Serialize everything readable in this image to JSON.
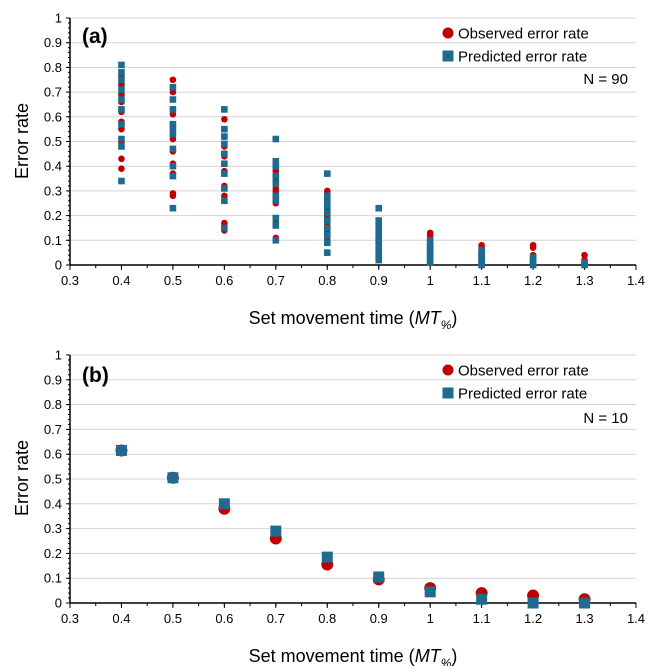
{
  "colors": {
    "observed": "#c00000",
    "predicted": "#1f6b8f"
  },
  "chart_data": [
    {
      "type": "scatter",
      "panel_label": "(a)",
      "xlabel_main": "Set movement time (",
      "xlabel_italic": "MT",
      "xlabel_sub": "%",
      "xlabel_close": ")",
      "ylabel": "Error rate",
      "xlim": [
        0.3,
        1.4
      ],
      "ylim": [
        0,
        1
      ],
      "xticks": [
        "0.3",
        "0.4",
        "0.5",
        "0.6",
        "0.7",
        "0.8",
        "0.9",
        "1",
        "1.1",
        "1.2",
        "1.3",
        "1.4"
      ],
      "yticks": [
        "0",
        "0.1",
        "0.2",
        "0.3",
        "0.4",
        "0.5",
        "0.6",
        "0.7",
        "0.8",
        "0.9",
        "1"
      ],
      "grid": true,
      "legend_position": "top-right",
      "annotation": "N = 90",
      "series": [
        {
          "name": "Observed error rate",
          "marker": "circle",
          "points": [
            [
              0.4,
              0.39
            ],
            [
              0.4,
              0.43
            ],
            [
              0.4,
              0.5
            ],
            [
              0.4,
              0.55
            ],
            [
              0.4,
              0.58
            ],
            [
              0.4,
              0.62
            ],
            [
              0.4,
              0.66
            ],
            [
              0.4,
              0.69
            ],
            [
              0.4,
              0.73
            ],
            [
              0.4,
              0.77
            ],
            [
              0.5,
              0.28
            ],
            [
              0.5,
              0.29
            ],
            [
              0.5,
              0.37
            ],
            [
              0.5,
              0.41
            ],
            [
              0.5,
              0.46
            ],
            [
              0.5,
              0.51
            ],
            [
              0.5,
              0.57
            ],
            [
              0.5,
              0.61
            ],
            [
              0.5,
              0.7
            ],
            [
              0.5,
              0.75
            ],
            [
              0.6,
              0.14
            ],
            [
              0.6,
              0.17
            ],
            [
              0.6,
              0.28
            ],
            [
              0.6,
              0.32
            ],
            [
              0.6,
              0.38
            ],
            [
              0.6,
              0.44
            ],
            [
              0.6,
              0.48
            ],
            [
              0.6,
              0.52
            ],
            [
              0.6,
              0.55
            ],
            [
              0.6,
              0.59
            ],
            [
              0.7,
              0.11
            ],
            [
              0.7,
              0.17
            ],
            [
              0.7,
              0.25
            ],
            [
              0.7,
              0.29
            ],
            [
              0.7,
              0.3
            ],
            [
              0.7,
              0.31
            ],
            [
              0.7,
              0.34
            ],
            [
              0.7,
              0.36
            ],
            [
              0.7,
              0.38
            ],
            [
              0.7,
              0.4
            ],
            [
              0.8,
              0.05
            ],
            [
              0.8,
              0.1
            ],
            [
              0.8,
              0.13
            ],
            [
              0.8,
              0.16
            ],
            [
              0.8,
              0.2
            ],
            [
              0.8,
              0.22
            ],
            [
              0.8,
              0.25
            ],
            [
              0.8,
              0.27
            ],
            [
              0.8,
              0.29
            ],
            [
              0.8,
              0.3
            ],
            [
              0.9,
              0.03
            ],
            [
              0.9,
              0.05
            ],
            [
              0.9,
              0.07
            ],
            [
              0.9,
              0.09
            ],
            [
              0.9,
              0.1
            ],
            [
              0.9,
              0.12
            ],
            [
              0.9,
              0.13
            ],
            [
              0.9,
              0.14
            ],
            [
              0.9,
              0.16
            ],
            [
              0.9,
              0.17
            ],
            [
              1.0,
              0.01
            ],
            [
              1.0,
              0.02
            ],
            [
              1.0,
              0.03
            ],
            [
              1.0,
              0.04
            ],
            [
              1.0,
              0.05
            ],
            [
              1.0,
              0.06
            ],
            [
              1.0,
              0.08
            ],
            [
              1.0,
              0.1
            ],
            [
              1.0,
              0.12
            ],
            [
              1.0,
              0.13
            ],
            [
              1.1,
              0.0
            ],
            [
              1.1,
              0.01
            ],
            [
              1.1,
              0.02
            ],
            [
              1.1,
              0.03
            ],
            [
              1.1,
              0.04
            ],
            [
              1.1,
              0.05
            ],
            [
              1.1,
              0.07
            ],
            [
              1.1,
              0.08
            ],
            [
              1.2,
              0.0
            ],
            [
              1.2,
              0.01
            ],
            [
              1.2,
              0.02
            ],
            [
              1.2,
              0.04
            ],
            [
              1.2,
              0.07
            ],
            [
              1.2,
              0.08
            ],
            [
              1.3,
              0.0
            ],
            [
              1.3,
              0.01
            ],
            [
              1.3,
              0.02
            ],
            [
              1.3,
              0.04
            ]
          ]
        },
        {
          "name": "Predicted error rate",
          "marker": "square",
          "points": [
            [
              0.4,
              0.34
            ],
            [
              0.4,
              0.48
            ],
            [
              0.4,
              0.51
            ],
            [
              0.4,
              0.57
            ],
            [
              0.4,
              0.63
            ],
            [
              0.4,
              0.67
            ],
            [
              0.4,
              0.71
            ],
            [
              0.4,
              0.75
            ],
            [
              0.4,
              0.78
            ],
            [
              0.4,
              0.81
            ],
            [
              0.5,
              0.23
            ],
            [
              0.5,
              0.36
            ],
            [
              0.5,
              0.4
            ],
            [
              0.5,
              0.47
            ],
            [
              0.5,
              0.53
            ],
            [
              0.5,
              0.55
            ],
            [
              0.5,
              0.57
            ],
            [
              0.5,
              0.63
            ],
            [
              0.5,
              0.67
            ],
            [
              0.5,
              0.72
            ],
            [
              0.6,
              0.15
            ],
            [
              0.6,
              0.26
            ],
            [
              0.6,
              0.31
            ],
            [
              0.6,
              0.37
            ],
            [
              0.6,
              0.41
            ],
            [
              0.6,
              0.45
            ],
            [
              0.6,
              0.49
            ],
            [
              0.6,
              0.52
            ],
            [
              0.6,
              0.55
            ],
            [
              0.6,
              0.63
            ],
            [
              0.7,
              0.1
            ],
            [
              0.7,
              0.16
            ],
            [
              0.7,
              0.19
            ],
            [
              0.7,
              0.26
            ],
            [
              0.7,
              0.28
            ],
            [
              0.7,
              0.33
            ],
            [
              0.7,
              0.36
            ],
            [
              0.7,
              0.4
            ],
            [
              0.7,
              0.42
            ],
            [
              0.7,
              0.51
            ],
            [
              0.8,
              0.05
            ],
            [
              0.8,
              0.09
            ],
            [
              0.8,
              0.12
            ],
            [
              0.8,
              0.15
            ],
            [
              0.8,
              0.18
            ],
            [
              0.8,
              0.21
            ],
            [
              0.8,
              0.24
            ],
            [
              0.8,
              0.26
            ],
            [
              0.8,
              0.28
            ],
            [
              0.8,
              0.37
            ],
            [
              0.9,
              0.02
            ],
            [
              0.9,
              0.04
            ],
            [
              0.9,
              0.06
            ],
            [
              0.9,
              0.08
            ],
            [
              0.9,
              0.1
            ],
            [
              0.9,
              0.12
            ],
            [
              0.9,
              0.14
            ],
            [
              0.9,
              0.16
            ],
            [
              0.9,
              0.18
            ],
            [
              0.9,
              0.23
            ],
            [
              1.0,
              0.01
            ],
            [
              1.0,
              0.02
            ],
            [
              1.0,
              0.03
            ],
            [
              1.0,
              0.04
            ],
            [
              1.0,
              0.05
            ],
            [
              1.0,
              0.06
            ],
            [
              1.0,
              0.07
            ],
            [
              1.0,
              0.08
            ],
            [
              1.0,
              0.09
            ],
            [
              1.0,
              0.1
            ],
            [
              1.1,
              0.0
            ],
            [
              1.1,
              0.01
            ],
            [
              1.1,
              0.02
            ],
            [
              1.1,
              0.03
            ],
            [
              1.1,
              0.04
            ],
            [
              1.1,
              0.05
            ],
            [
              1.1,
              0.06
            ],
            [
              1.2,
              0.0
            ],
            [
              1.2,
              0.01
            ],
            [
              1.2,
              0.02
            ],
            [
              1.2,
              0.03
            ],
            [
              1.3,
              0.0
            ],
            [
              1.3,
              0.01
            ]
          ]
        }
      ]
    },
    {
      "type": "scatter",
      "panel_label": "(b)",
      "xlabel_main": "Set movement time (",
      "xlabel_italic": "MT",
      "xlabel_sub": "%",
      "xlabel_close": ")",
      "ylabel": "Error rate",
      "xlim": [
        0.3,
        1.4
      ],
      "ylim": [
        0,
        1
      ],
      "xticks": [
        "0.3",
        "0.4",
        "0.5",
        "0.6",
        "0.7",
        "0.8",
        "0.9",
        "1",
        "1.1",
        "1.2",
        "1.3",
        "1.4"
      ],
      "yticks": [
        "0",
        "0.1",
        "0.2",
        "0.3",
        "0.4",
        "0.5",
        "0.6",
        "0.7",
        "0.8",
        "0.9",
        "1"
      ],
      "grid": true,
      "legend_position": "top-right",
      "annotation": "N = 10",
      "series": [
        {
          "name": "Observed error rate",
          "marker": "circle",
          "points": [
            [
              0.4,
              0.615
            ],
            [
              0.5,
              0.505
            ],
            [
              0.6,
              0.38
            ],
            [
              0.7,
              0.26
            ],
            [
              0.8,
              0.155
            ],
            [
              0.9,
              0.095
            ],
            [
              1.0,
              0.06
            ],
            [
              1.1,
              0.04
            ],
            [
              1.2,
              0.03
            ],
            [
              1.3,
              0.015
            ]
          ]
        },
        {
          "name": "Predicted error rate",
          "marker": "square",
          "points": [
            [
              0.4,
              0.615
            ],
            [
              0.5,
              0.505
            ],
            [
              0.6,
              0.4
            ],
            [
              0.7,
              0.29
            ],
            [
              0.8,
              0.185
            ],
            [
              0.9,
              0.105
            ],
            [
              1.0,
              0.045
            ],
            [
              1.1,
              0.015
            ],
            [
              1.2,
              0.0
            ],
            [
              1.3,
              0.0
            ]
          ]
        }
      ]
    }
  ]
}
